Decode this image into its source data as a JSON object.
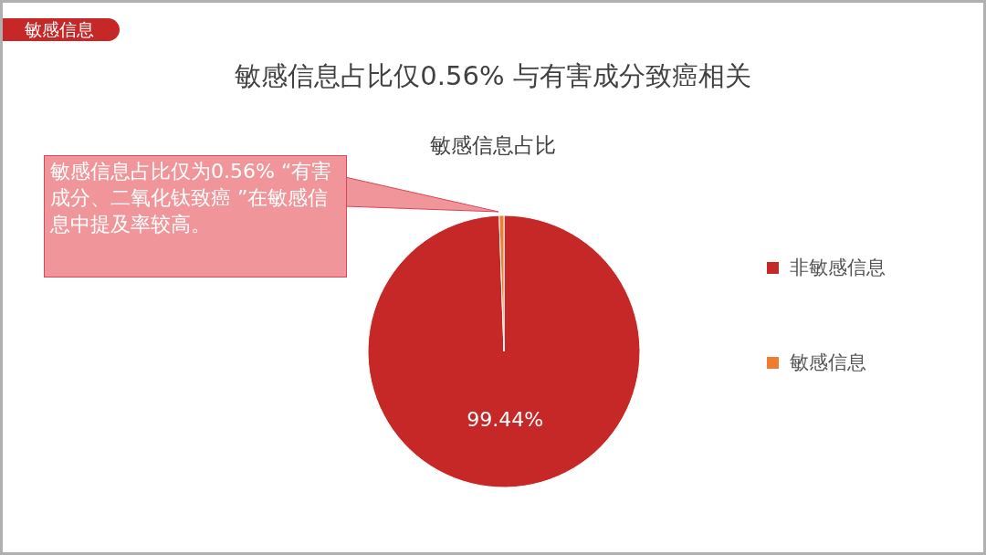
{
  "chart_data": {
    "type": "pie",
    "title": "敏感信息占比仅0.56% 与有害成分致癌相关",
    "subtitle": "敏感信息占比",
    "annotations": [
      "敏感信息",
      "敏感信息占比仅为0.56% “有害成分、二氧化钛致癌 ”在敏感信息中提及率较高。"
    ],
    "categories": [
      "非敏感信息",
      "敏感信息"
    ],
    "values": [
      99.44,
      0.56
    ],
    "colors": [
      "#c62828",
      "#ed7d31"
    ],
    "value_labels": [
      "99.44%",
      null
    ],
    "legend": "right"
  }
}
